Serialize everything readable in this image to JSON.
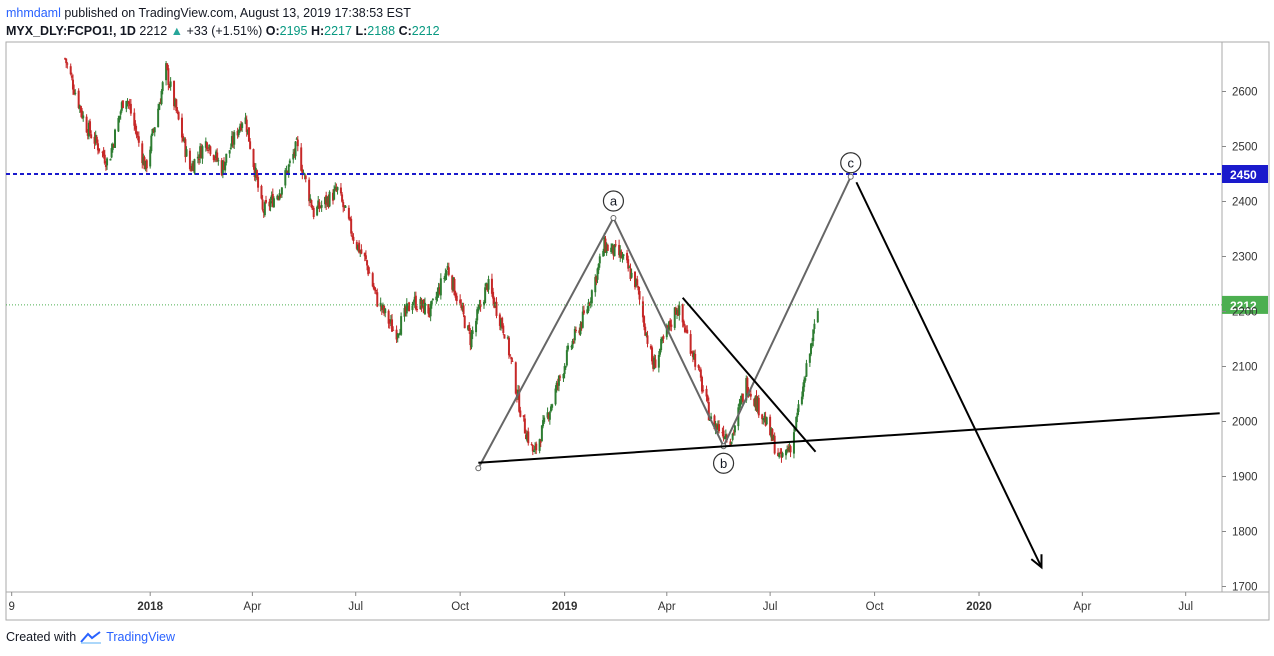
{
  "header": {
    "author": "mhmdaml",
    "published_text": " published on TradingView.com, August 13, 2019 17:38:53 EST",
    "symbol": "MYX_DLY:FCPO1!, 1D",
    "last": "2212",
    "change": "+33 (+1.51%)",
    "open_label": "O:",
    "open": "2195",
    "high_label": "H:",
    "high": "2217",
    "low_label": "L:",
    "low": "2188",
    "close_label": "C:",
    "close": "2212"
  },
  "footer": {
    "created_with": "Created with",
    "brand": "TradingView"
  },
  "colors": {
    "up": "#26a69a",
    "down": "#ef5350",
    "up_candle": "#2e7d32",
    "down_candle": "#c62828",
    "resistance": "#1a1acc",
    "price_line": "#4caf50",
    "pattern": "#666666",
    "trend": "#000000"
  },
  "chart_data": {
    "type": "candlestick",
    "y_ticks": [
      1700,
      1800,
      1900,
      2000,
      2100,
      2200,
      2300,
      2400,
      2500,
      2600
    ],
    "ylim": [
      1690,
      2690
    ],
    "x_ticks": [
      {
        "label": "9",
        "date": "2017-09-01"
      },
      {
        "label": "2018",
        "date": "2018-01-01",
        "bold": true
      },
      {
        "label": "Apr",
        "date": "2018-04-01"
      },
      {
        "label": "Jul",
        "date": "2018-07-01"
      },
      {
        "label": "Oct",
        "date": "2018-10-01"
      },
      {
        "label": "2019",
        "date": "2019-01-01",
        "bold": true
      },
      {
        "label": "Apr",
        "date": "2019-04-01"
      },
      {
        "label": "Jul",
        "date": "2019-07-01"
      },
      {
        "label": "Oct",
        "date": "2019-10-01"
      },
      {
        "label": "2020",
        "date": "2020-01-01",
        "bold": true
      },
      {
        "label": "Apr",
        "date": "2020-04-01"
      },
      {
        "label": "Jul",
        "date": "2020-07-01"
      }
    ],
    "price_path": [
      [
        "2017-10-18",
        2660
      ],
      [
        "2017-11-05",
        2540
      ],
      [
        "2017-11-25",
        2470
      ],
      [
        "2017-12-10",
        2600
      ],
      [
        "2017-12-28",
        2460
      ],
      [
        "2018-01-15",
        2640
      ],
      [
        "2018-02-05",
        2460
      ],
      [
        "2018-02-20",
        2510
      ],
      [
        "2018-03-05",
        2460
      ],
      [
        "2018-03-25",
        2560
      ],
      [
        "2018-04-10",
        2380
      ],
      [
        "2018-04-25",
        2420
      ],
      [
        "2018-05-10",
        2500
      ],
      [
        "2018-05-25",
        2380
      ],
      [
        "2018-06-15",
        2420
      ],
      [
        "2018-06-30",
        2330
      ],
      [
        "2018-07-10",
        2290
      ],
      [
        "2018-07-20",
        2220
      ],
      [
        "2018-08-05",
        2160
      ],
      [
        "2018-08-20",
        2220
      ],
      [
        "2018-09-05",
        2200
      ],
      [
        "2018-09-20",
        2280
      ],
      [
        "2018-10-10",
        2150
      ],
      [
        "2018-10-25",
        2250
      ],
      [
        "2018-11-10",
        2160
      ],
      [
        "2018-11-25",
        2000
      ],
      [
        "2018-12-05",
        1940
      ],
      [
        "2018-12-20",
        2030
      ],
      [
        "2019-01-05",
        2130
      ],
      [
        "2019-01-20",
        2200
      ],
      [
        "2019-02-05",
        2320
      ],
      [
        "2019-02-20",
        2300
      ],
      [
        "2019-03-05",
        2250
      ],
      [
        "2019-03-20",
        2100
      ],
      [
        "2019-04-01",
        2160
      ],
      [
        "2019-04-10",
        2210
      ],
      [
        "2019-04-25",
        2120
      ],
      [
        "2019-05-10",
        2000
      ],
      [
        "2019-05-28",
        1970
      ],
      [
        "2019-06-10",
        2070
      ],
      [
        "2019-06-25",
        2010
      ],
      [
        "2019-07-10",
        1930
      ],
      [
        "2019-07-20",
        1960
      ],
      [
        "2019-07-30",
        2060
      ],
      [
        "2019-08-13",
        2212
      ]
    ],
    "horizontal_lines": [
      {
        "name": "resistance",
        "price": 2450,
        "label": "2450",
        "style": "dashed",
        "color": "#1a1acc"
      },
      {
        "name": "last-price",
        "price": 2212,
        "label": "2212",
        "style": "dotted",
        "color": "#4caf50"
      }
    ],
    "abc_pattern": [
      {
        "label": "",
        "date": "2018-10-17",
        "price": 1915
      },
      {
        "label": "a",
        "date": "2019-02-13",
        "price": 2370
      },
      {
        "label": "b",
        "date": "2019-05-21",
        "price": 1955
      },
      {
        "label": "c",
        "date": "2019-09-10",
        "price": 2445
      }
    ],
    "trendlines": [
      {
        "name": "support-trendline",
        "from": {
          "date": "2018-10-17",
          "price": 1925
        },
        "to": {
          "date": "2020-07-31",
          "price": 2015
        }
      },
      {
        "name": "falling-resistance-trendline",
        "from": {
          "date": "2019-04-15",
          "price": 2225
        },
        "to": {
          "date": "2019-08-10",
          "price": 1945
        }
      },
      {
        "name": "projection-arrow",
        "from": {
          "date": "2019-09-15",
          "price": 2435
        },
        "to": {
          "date": "2020-02-25",
          "price": 1735
        },
        "arrow": true
      }
    ]
  }
}
